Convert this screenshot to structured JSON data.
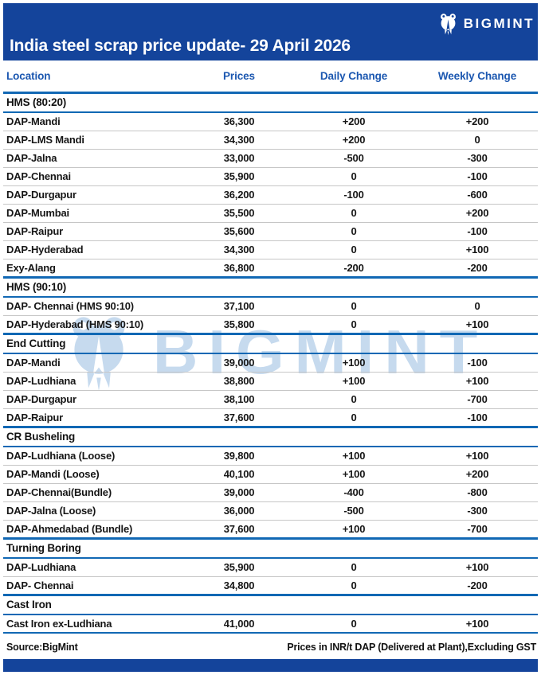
{
  "brand": {
    "name": "BIGMINT"
  },
  "header": {
    "title": "India steel scrap price update- 29 April 2026"
  },
  "table": {
    "columns": [
      "Location",
      "Prices",
      "Daily Change",
      "Weekly Change"
    ],
    "rows": [
      {
        "type": "section",
        "label": "HMS (80:20)"
      },
      {
        "type": "data",
        "location": "DAP-Mandi",
        "price": "36,300",
        "daily": "+200",
        "weekly": "+200"
      },
      {
        "type": "data",
        "location": "DAP-LMS Mandi",
        "price": "34,300",
        "daily": "+200",
        "weekly": "0"
      },
      {
        "type": "data",
        "location": "DAP-Jalna",
        "price": "33,000",
        "daily": "-500",
        "weekly": "-300"
      },
      {
        "type": "data",
        "location": "DAP-Chennai",
        "price": "35,900",
        "daily": "0",
        "weekly": "-100"
      },
      {
        "type": "data",
        "location": "DAP-Durgapur",
        "price": "36,200",
        "daily": "-100",
        "weekly": "-600"
      },
      {
        "type": "data",
        "location": "DAP-Mumbai",
        "price": "35,500",
        "daily": "0",
        "weekly": "+200"
      },
      {
        "type": "data",
        "location": "DAP-Raipur",
        "price": "35,600",
        "daily": "0",
        "weekly": "-100"
      },
      {
        "type": "data",
        "location": "DAP-Hyderabad",
        "price": "34,300",
        "daily": "0",
        "weekly": "+100"
      },
      {
        "type": "data",
        "location": "Exy-Alang",
        "price": "36,800",
        "daily": "-200",
        "weekly": "-200"
      },
      {
        "type": "section",
        "label": "HMS (90:10)"
      },
      {
        "type": "data",
        "location": "DAP- Chennai (HMS 90:10)",
        "price": "37,100",
        "daily": "0",
        "weekly": "0"
      },
      {
        "type": "data",
        "location": "DAP-Hyderabad (HMS 90:10)",
        "price": "35,800",
        "daily": "0",
        "weekly": "+100"
      },
      {
        "type": "section",
        "label": "End Cutting"
      },
      {
        "type": "data",
        "location": "DAP-Mandi",
        "price": "39,000",
        "daily": "+100",
        "weekly": "-100"
      },
      {
        "type": "data",
        "location": "DAP-Ludhiana",
        "price": "38,800",
        "daily": "+100",
        "weekly": "+100"
      },
      {
        "type": "data",
        "location": "DAP-Durgapur",
        "price": "38,100",
        "daily": "0",
        "weekly": "-700"
      },
      {
        "type": "data",
        "location": "DAP-Raipur",
        "price": "37,600",
        "daily": "0",
        "weekly": "-100"
      },
      {
        "type": "section",
        "label": "CR Busheling"
      },
      {
        "type": "data",
        "location": "DAP-Ludhiana (Loose)",
        "price": "39,800",
        "daily": "+100",
        "weekly": "+100"
      },
      {
        "type": "data",
        "location": "DAP-Mandi (Loose)",
        "price": "40,100",
        "daily": "+100",
        "weekly": "+200"
      },
      {
        "type": "data",
        "location": "DAP-Chennai(Bundle)",
        "price": "39,000",
        "daily": "-400",
        "weekly": "-800"
      },
      {
        "type": "data",
        "location": "DAP-Jalna (Loose)",
        "price": "36,000",
        "daily": "-500",
        "weekly": "-300"
      },
      {
        "type": "data",
        "location": "DAP-Ahmedabad (Bundle)",
        "price": "37,600",
        "daily": "+100",
        "weekly": "-700"
      },
      {
        "type": "section",
        "label": "Turning Boring"
      },
      {
        "type": "data",
        "location": "DAP-Ludhiana",
        "price": "35,900",
        "daily": "0",
        "weekly": "+100"
      },
      {
        "type": "data",
        "location": "DAP- Chennai",
        "price": "34,800",
        "daily": "0",
        "weekly": "-200"
      },
      {
        "type": "section",
        "label": "Cast Iron"
      },
      {
        "type": "data",
        "location": "Cast Iron ex-Ludhiana",
        "price": "41,000",
        "daily": "0",
        "weekly": "+100"
      }
    ]
  },
  "footer": {
    "source": "Source:BigMint",
    "note": "Prices in INR/t DAP (Delivered at Plant),Excluding GST"
  },
  "colors": {
    "header_bar": "#14449B",
    "accent_line": "#1168B4",
    "column_header_text": "#1B57B0",
    "positive": "#0FAE62",
    "negative": "#F90505",
    "watermark": "#C6DAEE"
  }
}
